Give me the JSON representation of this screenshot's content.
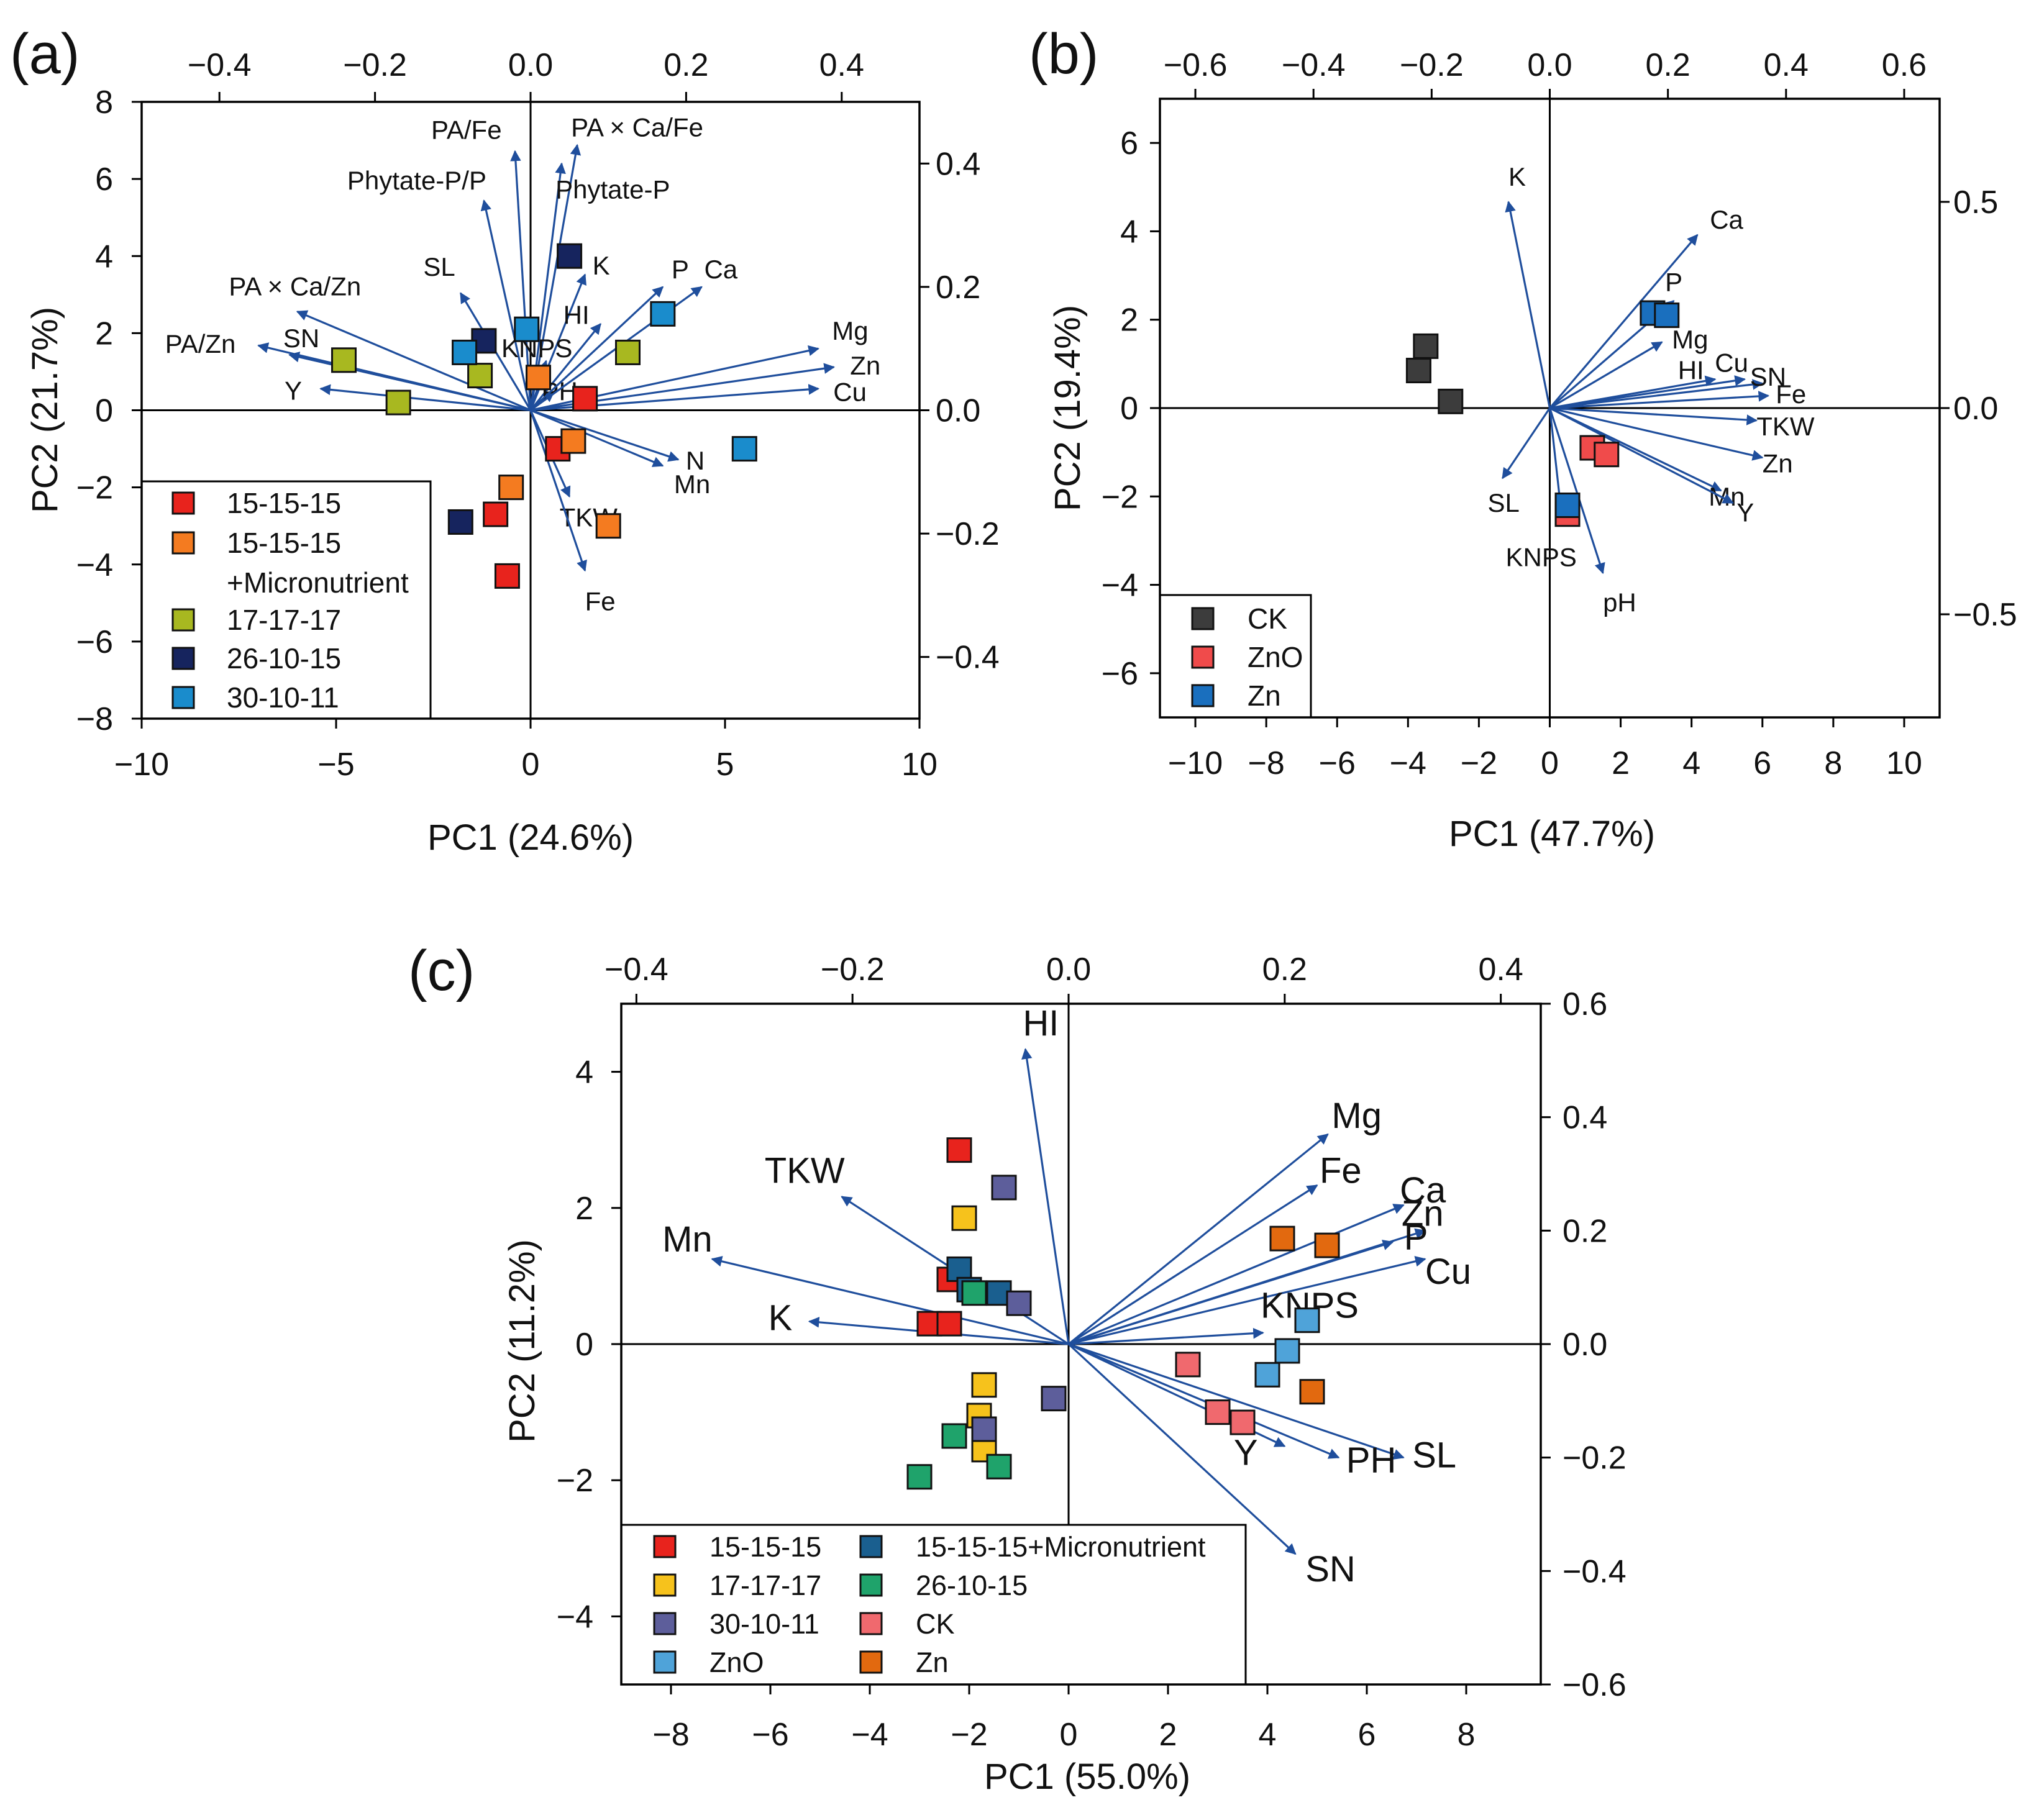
{
  "chart_data": [
    {
      "type": "scatter",
      "panel_label": "(a)",
      "title": "",
      "xlabel": "PC1 (24.6%)",
      "ylabel": "PC2 (21.7%)",
      "xlim": [
        -10,
        10
      ],
      "ylim": [
        -8,
        8
      ],
      "xticks": [
        -10,
        -5,
        0,
        5,
        10
      ],
      "xtick_labels": [
        "−10",
        "−5",
        "0",
        "5",
        "10"
      ],
      "yticks": [
        -8,
        -6,
        -4,
        -2,
        0,
        2,
        4,
        6,
        8
      ],
      "ytick_labels": [
        "−8",
        "−6",
        "−4",
        "−2",
        "0",
        "2",
        "4",
        "6",
        "8"
      ],
      "top_lim": [
        -0.5,
        0.5
      ],
      "top_ticks": [
        -0.4,
        -0.2,
        0.0,
        0.2,
        0.4
      ],
      "top_tick_labels": [
        "−0.4",
        "−0.2",
        "0.0",
        "0.2",
        "0.4"
      ],
      "right_lim": [
        -0.5,
        0.5
      ],
      "right_ticks": [
        -0.4,
        -0.2,
        0.0,
        0.2,
        0.4
      ],
      "right_tick_labels": [
        "−0.4",
        "−0.2",
        "0.0",
        "0.2",
        "0.4"
      ],
      "groups": [
        {
          "name": "15-15-15",
          "color": "#e8231d",
          "points": [
            [
              -0.6,
              -4.3
            ],
            [
              -0.9,
              -2.7
            ],
            [
              0.7,
              -1.0
            ],
            [
              1.4,
              0.3
            ]
          ]
        },
        {
          "name": "15-15-15\n+Micronutrient",
          "color": "#f47b20",
          "points": [
            [
              -0.5,
              -2.0
            ],
            [
              2.0,
              -3.0
            ],
            [
              1.1,
              -0.8
            ],
            [
              0.2,
              0.85
            ]
          ]
        },
        {
          "name": "17-17-17",
          "color": "#a8b820",
          "points": [
            [
              -4.8,
              1.3
            ],
            [
              -3.4,
              0.2
            ],
            [
              2.5,
              1.5
            ],
            [
              -1.3,
              0.9
            ]
          ]
        },
        {
          "name": "26-10-15",
          "color": "#16245e",
          "points": [
            [
              -1.8,
              -2.9
            ],
            [
              1.0,
              4.0
            ],
            [
              -1.2,
              1.8
            ]
          ]
        },
        {
          "name": "30-10-11",
          "color": "#1a8ccc",
          "points": [
            [
              5.5,
              -1.0
            ],
            [
              3.4,
              2.5
            ],
            [
              -0.1,
              2.1
            ],
            [
              -1.7,
              1.5
            ]
          ]
        }
      ],
      "legend_labels": [
        "15-15-15",
        "15-15-15",
        "+Micronutrient",
        "17-17-17",
        "26-10-15",
        "30-10-11"
      ],
      "loadings": [
        {
          "label": "PA/Fe",
          "x": -0.02,
          "y": 0.42
        },
        {
          "label": "PA × Ca/Fe",
          "x": 0.06,
          "y": 0.43
        },
        {
          "label": "Phytate-P/P",
          "x": -0.06,
          "y": 0.34
        },
        {
          "label": "Phytate-P",
          "x": 0.04,
          "y": 0.4
        },
        {
          "label": "SL",
          "x": -0.09,
          "y": 0.19
        },
        {
          "label": "K",
          "x": 0.07,
          "y": 0.22
        },
        {
          "label": "PA × Ca/Zn",
          "x": -0.3,
          "y": 0.16
        },
        {
          "label": "PA/Zn",
          "x": -0.35,
          "y": 0.105
        },
        {
          "label": "SN",
          "x": -0.31,
          "y": 0.09
        },
        {
          "label": "Y",
          "x": -0.27,
          "y": 0.035
        },
        {
          "label": "HI",
          "x": 0.09,
          "y": 0.14
        },
        {
          "label": "KNPS",
          "x": 0.02,
          "y": 0.08
        },
        {
          "label": "PH",
          "x": 0.03,
          "y": 0.03
        },
        {
          "label": "P",
          "x": 0.17,
          "y": 0.2
        },
        {
          "label": "Ca",
          "x": 0.22,
          "y": 0.2
        },
        {
          "label": "Mg",
          "x": 0.37,
          "y": 0.1
        },
        {
          "label": "Zn",
          "x": 0.39,
          "y": 0.07
        },
        {
          "label": "Cu",
          "x": 0.37,
          "y": 0.035
        },
        {
          "label": "N",
          "x": 0.19,
          "y": -0.08
        },
        {
          "label": "Mn",
          "x": 0.17,
          "y": -0.09
        },
        {
          "label": "TKW",
          "x": 0.05,
          "y": -0.14
        },
        {
          "label": "Fe",
          "x": 0.07,
          "y": -0.26
        }
      ]
    },
    {
      "type": "scatter",
      "panel_label": "(b)",
      "title": "",
      "xlabel": "PC1 (47.7%)",
      "ylabel": "PC2 (19.4%)",
      "xlim": [
        -11,
        11
      ],
      "ylim": [
        -7,
        7
      ],
      "xticks": [
        -10,
        -8,
        -6,
        -4,
        -2,
        0,
        2,
        4,
        6,
        8,
        10
      ],
      "xtick_labels": [
        "−10",
        "−8",
        "−6",
        "−4",
        "−2",
        "0",
        "2",
        "4",
        "6",
        "8",
        "10"
      ],
      "yticks": [
        -6,
        -4,
        -2,
        0,
        2,
        4,
        6
      ],
      "ytick_labels": [
        "−6",
        "−4",
        "−2",
        "0",
        "2",
        "4",
        "6"
      ],
      "top_lim": [
        -0.66,
        0.66
      ],
      "top_ticks": [
        -0.6,
        -0.4,
        -0.2,
        0.0,
        0.2,
        0.4,
        0.6
      ],
      "top_tick_labels": [
        "−0.6",
        "−0.4",
        "−0.2",
        "0.0",
        "0.2",
        "0.4",
        "0.6"
      ],
      "right_lim": [
        -0.75,
        0.75
      ],
      "right_ticks": [
        -0.5,
        0.0,
        0.5
      ],
      "right_tick_labels": [
        "−0.5",
        "0.0",
        "0.5"
      ],
      "groups": [
        {
          "name": "CK",
          "color": "#3c3c3c",
          "points": [
            [
              -3.5,
              1.4
            ],
            [
              -3.7,
              0.85
            ],
            [
              -2.8,
              0.15
            ]
          ]
        },
        {
          "name": "ZnO",
          "color": "#f04b4b",
          "points": [
            [
              1.2,
              -0.9
            ],
            [
              1.6,
              -1.05
            ],
            [
              0.5,
              -2.4
            ]
          ]
        },
        {
          "name": "Zn",
          "color": "#1a6fbe",
          "points": [
            [
              2.9,
              2.15
            ],
            [
              3.3,
              2.1
            ],
            [
              0.5,
              -2.2
            ]
          ]
        }
      ],
      "loadings": [
        {
          "label": "K",
          "x": -0.07,
          "y": 0.5
        },
        {
          "label": "SL",
          "x": -0.08,
          "y": -0.17
        },
        {
          "label": "KNPS",
          "x": 0.02,
          "y": -0.26
        },
        {
          "label": "pH",
          "x": 0.09,
          "y": -0.4
        },
        {
          "label": "Ca",
          "x": 0.25,
          "y": 0.42
        },
        {
          "label": "P",
          "x": 0.21,
          "y": 0.26
        },
        {
          "label": "Mg",
          "x": 0.19,
          "y": 0.16
        },
        {
          "label": "HI",
          "x": 0.28,
          "y": 0.07
        },
        {
          "label": "Cu",
          "x": 0.33,
          "y": 0.07
        },
        {
          "label": "SN",
          "x": 0.36,
          "y": 0.06
        },
        {
          "label": "Fe",
          "x": 0.37,
          "y": 0.03
        },
        {
          "label": "TKW",
          "x": 0.35,
          "y": -0.03
        },
        {
          "label": "Zn",
          "x": 0.36,
          "y": -0.12
        },
        {
          "label": "Mn",
          "x": 0.29,
          "y": -0.2
        },
        {
          "label": "Y",
          "x": 0.31,
          "y": -0.23
        }
      ]
    },
    {
      "type": "scatter",
      "panel_label": "(c)",
      "title": "",
      "xlabel": "PC1 (55.0%)",
      "ylabel": "PC2 (11.2%)",
      "xlim": [
        -9,
        9.5
      ],
      "ylim": [
        -5,
        5
      ],
      "xticks": [
        -8,
        -6,
        -4,
        -2,
        0,
        2,
        4,
        6,
        8
      ],
      "xtick_labels": [
        "−8",
        "−6",
        "−4",
        "−2",
        "0",
        "2",
        "4",
        "6",
        "8"
      ],
      "yticks": [
        -4,
        -2,
        0,
        2,
        4
      ],
      "ytick_labels": [
        "−4",
        "−2",
        "0",
        "2",
        "4"
      ],
      "top_lim": [
        -0.414,
        0.437
      ],
      "top_ticks": [
        -0.4,
        -0.2,
        0.0,
        0.2,
        0.4
      ],
      "top_tick_labels": [
        "−0.4",
        "−0.2",
        "0.0",
        "0.2",
        "0.4"
      ],
      "right_lim": [
        -0.6,
        0.6
      ],
      "right_ticks": [
        -0.6,
        -0.4,
        -0.2,
        0.0,
        0.2,
        0.4,
        0.6
      ],
      "right_tick_labels": [
        "−0.6",
        "−0.4",
        "−0.2",
        "0.0",
        "0.2",
        "0.4",
        "0.6"
      ],
      "groups": [
        {
          "name": "15-15-15",
          "color": "#e8231d",
          "points": [
            [
              -2.2,
              2.85
            ],
            [
              -2.4,
              0.95
            ],
            [
              -2.8,
              0.3
            ],
            [
              -2.4,
              0.3
            ]
          ]
        },
        {
          "name": "15-15-15+Micronutrient",
          "color": "#1a5f8f",
          "points": [
            [
              -2.2,
              1.1
            ],
            [
              -1.4,
              0.75
            ],
            [
              -2.0,
              0.8
            ]
          ]
        },
        {
          "name": "17-17-17",
          "color": "#f6c21c",
          "points": [
            [
              -2.1,
              1.85
            ],
            [
              -1.7,
              -0.6
            ],
            [
              -1.8,
              -1.05
            ],
            [
              -1.7,
              -1.55
            ]
          ]
        },
        {
          "name": "26-10-15",
          "color": "#1fa36b",
          "points": [
            [
              -1.9,
              0.75
            ],
            [
              -2.3,
              -1.35
            ],
            [
              -1.4,
              -1.8
            ],
            [
              -3.0,
              -1.95
            ]
          ]
        },
        {
          "name": "30-10-11",
          "color": "#5d5e9b",
          "points": [
            [
              -1.3,
              2.3
            ],
            [
              -1.0,
              0.6
            ],
            [
              -1.7,
              -1.25
            ],
            [
              -0.3,
              -0.8
            ]
          ]
        },
        {
          "name": "CK",
          "color": "#f0696e",
          "points": [
            [
              2.4,
              -0.3
            ],
            [
              3.0,
              -1.0
            ],
            [
              3.5,
              -1.15
            ]
          ]
        },
        {
          "name": "ZnO",
          "color": "#4fa3d9",
          "points": [
            [
              4.8,
              0.35
            ],
            [
              4.4,
              -0.1
            ],
            [
              4.0,
              -0.45
            ]
          ]
        },
        {
          "name": "Zn",
          "color": "#e2690f",
          "points": [
            [
              4.3,
              1.55
            ],
            [
              5.2,
              1.45
            ],
            [
              4.9,
              -0.7
            ]
          ]
        }
      ],
      "loadings": [
        {
          "label": "HI",
          "x": -0.04,
          "y": 0.52
        },
        {
          "label": "TKW",
          "x": -0.21,
          "y": 0.26
        },
        {
          "label": "Mn",
          "x": -0.33,
          "y": 0.15
        },
        {
          "label": "K",
          "x": -0.24,
          "y": 0.04
        },
        {
          "label": "Mg",
          "x": 0.24,
          "y": 0.37
        },
        {
          "label": "Fe",
          "x": 0.23,
          "y": 0.28
        },
        {
          "label": "Ca",
          "x": 0.31,
          "y": 0.245
        },
        {
          "label": "Zn",
          "x": 0.33,
          "y": 0.2
        },
        {
          "label": "P",
          "x": 0.3,
          "y": 0.18
        },
        {
          "label": "Cu",
          "x": 0.33,
          "y": 0.15
        },
        {
          "label": "KNPS",
          "x": 0.18,
          "y": 0.02
        },
        {
          "label": "SL",
          "x": 0.31,
          "y": -0.2
        },
        {
          "label": "PH",
          "x": 0.25,
          "y": -0.2
        },
        {
          "label": "Y",
          "x": 0.2,
          "y": -0.18
        },
        {
          "label": "SN",
          "x": 0.21,
          "y": -0.37
        }
      ]
    }
  ]
}
